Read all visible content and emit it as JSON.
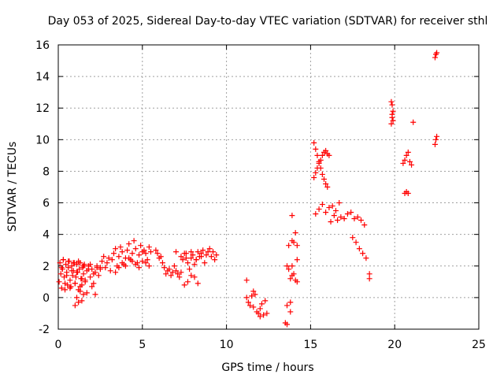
{
  "chart_data": {
    "type": "scatter",
    "title": "Day 053 of 2025, Sidereal Day-to-day VTEC variation (SDTVAR) for receiver sthl",
    "xlabel": "GPS time / hours",
    "ylabel": "SDTVAR / TECUs",
    "xlim": [
      0,
      25
    ],
    "ylim": [
      -2,
      16
    ],
    "xticks": [
      0,
      5,
      10,
      15,
      20,
      25
    ],
    "yticks": [
      -2,
      0,
      2,
      4,
      6,
      8,
      10,
      12,
      14,
      16
    ],
    "grid": true,
    "marker": "+",
    "color": "#ff0000",
    "series": [
      {
        "name": "sthl",
        "x": [
          0.05,
          0.1,
          0.15,
          0.2,
          0.25,
          0.3,
          0.35,
          0.4,
          0.45,
          0.5,
          0.55,
          0.6,
          0.65,
          0.7,
          0.75,
          0.8,
          0.85,
          0.9,
          0.95,
          1.0,
          1.05,
          1.1,
          1.15,
          1.2,
          1.25,
          1.3,
          1.35,
          1.4,
          1.45,
          1.5,
          1.55,
          1.6,
          1.7,
          1.8,
          1.9,
          2.0,
          2.1,
          2.2,
          2.3,
          2.4,
          2.5,
          0.2,
          0.3,
          0.4,
          0.5,
          0.6,
          0.7,
          0.8,
          0.9,
          1.0,
          1.1,
          1.2,
          1.3,
          1.4,
          1.5,
          1.6,
          1.7,
          1.8,
          1.9,
          2.0,
          2.1,
          2.2,
          2.3,
          1.0,
          1.1,
          1.2,
          1.3,
          1.4,
          1.5,
          2.5,
          2.6,
          2.7,
          2.8,
          2.9,
          3.0,
          3.1,
          3.2,
          3.3,
          3.4,
          3.5,
          3.6,
          3.7,
          3.8,
          3.9,
          4.0,
          4.1,
          4.2,
          4.3,
          4.4,
          4.5,
          4.6,
          4.7,
          4.8,
          4.9,
          5.0,
          5.1,
          5.2,
          5.3,
          5.4,
          5.5,
          3.4,
          3.6,
          3.8,
          4.0,
          4.2,
          4.4,
          4.6,
          4.8,
          5.0,
          5.2,
          5.4,
          5.8,
          5.9,
          6.0,
          6.1,
          6.2,
          6.3,
          6.4,
          6.5,
          6.6,
          6.7,
          6.8,
          6.9,
          7.0,
          7.1,
          7.2,
          7.3,
          7.4,
          7.5,
          7.6,
          7.7,
          7.8,
          7.9,
          8.0,
          8.1,
          8.2,
          8.3,
          8.4,
          8.5,
          8.6,
          8.7,
          8.8,
          8.9,
          9.0,
          9.1,
          9.2,
          9.3,
          9.4,
          7.0,
          7.3,
          7.6,
          7.9,
          8.2,
          8.5,
          7.5,
          7.7,
          7.9,
          8.1,
          8.3,
          11.2,
          11.3,
          11.4,
          11.5,
          11.6,
          11.7,
          11.8,
          11.9,
          12.0,
          12.1,
          12.2,
          12.3,
          12.4,
          11.2,
          11.6,
          12.0,
          13.6,
          13.7,
          13.8,
          13.9,
          14.0,
          14.1,
          14.2,
          13.6,
          13.7,
          13.8,
          13.9,
          14.0,
          14.1,
          14.2,
          13.6,
          13.8,
          13.9,
          14.2,
          13.5,
          13.9,
          15.2,
          15.3,
          15.4,
          15.5,
          15.6,
          15.7,
          15.8,
          15.9,
          16.0,
          15.2,
          15.3,
          15.4,
          15.5,
          15.6,
          15.7,
          15.8,
          15.9,
          16.0,
          16.1,
          15.3,
          15.5,
          15.7,
          15.9,
          16.1,
          16.3,
          16.5,
          16.7,
          16.2,
          16.4,
          16.6,
          16.8,
          17.0,
          17.2,
          17.4,
          17.6,
          17.8,
          18.0,
          18.2,
          17.5,
          17.7,
          17.9,
          18.1,
          18.3,
          18.5,
          18.5,
          19.8,
          19.85,
          19.9,
          19.85,
          19.8,
          19.9,
          19.85,
          20.5,
          20.6,
          20.7,
          20.8,
          20.9,
          20.6,
          20.7,
          20.8,
          21.0,
          21.1,
          22.4,
          22.45,
          22.5,
          22.4,
          22.45,
          22.5
        ],
        "y": [
          1.0,
          2.2,
          1.5,
          0.6,
          1.8,
          2.4,
          1.3,
          0.9,
          2.1,
          1.6,
          0.8,
          1.9,
          2.3,
          1.1,
          0.7,
          2.0,
          1.4,
          1.7,
          2.2,
          0.9,
          1.3,
          2.1,
          1.6,
          0.5,
          1.8,
          2.2,
          1.2,
          0.8,
          1.9,
          1.5,
          2.1,
          1.0,
          1.7,
          2.0,
          1.3,
          1.8,
          0.9,
          1.6,
          2.0,
          1.4,
          1.9,
          1.9,
          2.4,
          0.5,
          1.4,
          2.3,
          0.6,
          1.7,
          2.2,
          0.9,
          1.6,
          2.3,
          0.7,
          1.2,
          2.0,
          1.1,
          0.3,
          1.8,
          2.1,
          0.7,
          1.5,
          0.2,
          1.9,
          -0.5,
          0.0,
          -0.3,
          0.4,
          -0.2,
          0.2,
          1.8,
          2.3,
          2.6,
          1.9,
          2.2,
          2.5,
          1.7,
          2.4,
          2.8,
          3.1,
          2.0,
          2.6,
          3.2,
          2.9,
          2.1,
          2.5,
          3.0,
          3.4,
          2.4,
          2.8,
          3.6,
          3.1,
          2.2,
          2.7,
          3.3,
          2.9,
          3.0,
          2.8,
          2.4,
          3.2,
          2.9,
          1.6,
          1.9,
          2.2,
          2.0,
          2.5,
          2.3,
          2.1,
          1.9,
          2.3,
          2.2,
          2.0,
          3.0,
          2.8,
          2.5,
          2.6,
          2.2,
          1.9,
          1.5,
          1.7,
          1.8,
          1.4,
          1.6,
          2.0,
          1.7,
          1.5,
          1.3,
          1.6,
          2.4,
          2.8,
          2.5,
          2.2,
          1.8,
          2.9,
          2.7,
          2.1,
          2.4,
          2.9,
          2.6,
          2.8,
          3.0,
          2.2,
          2.7,
          2.9,
          3.1,
          2.6,
          2.9,
          2.4,
          2.7,
          2.9,
          2.6,
          2.8,
          2.5,
          2.4,
          2.6,
          0.8,
          1.0,
          1.4,
          1.3,
          0.9,
          0.0,
          -0.3,
          -0.5,
          0.1,
          -0.6,
          0.2,
          -0.9,
          -1.0,
          -0.7,
          -0.4,
          -1.1,
          -0.2,
          -1.0,
          1.1,
          0.4,
          -1.2,
          -1.7,
          3.3,
          -0.3,
          5.2,
          3.5,
          4.1,
          3.3,
          2.0,
          1.8,
          1.2,
          2.0,
          1.5,
          1.1,
          2.4,
          -0.5,
          -0.9,
          1.4,
          1.0,
          -1.6,
          3.6,
          9.8,
          9.4,
          9.0,
          8.6,
          8.2,
          7.8,
          7.5,
          7.2,
          7.0,
          7.6,
          7.9,
          8.2,
          8.5,
          8.7,
          9.0,
          9.2,
          9.3,
          9.1,
          9.0,
          5.3,
          5.6,
          5.9,
          5.4,
          5.7,
          5.8,
          5.5,
          6.0,
          4.8,
          5.2,
          4.9,
          5.1,
          5.0,
          5.3,
          5.4,
          5.0,
          5.1,
          4.9,
          4.6,
          3.8,
          3.5,
          3.1,
          2.8,
          2.5,
          1.5,
          1.2,
          11.0,
          11.4,
          11.8,
          12.2,
          12.4,
          11.2,
          11.6,
          8.5,
          8.7,
          9.0,
          9.2,
          8.6,
          6.6,
          6.7,
          6.6,
          8.4,
          11.1,
          15.2,
          15.4,
          15.5,
          9.7,
          10.0,
          10.2
        ]
      }
    ]
  }
}
